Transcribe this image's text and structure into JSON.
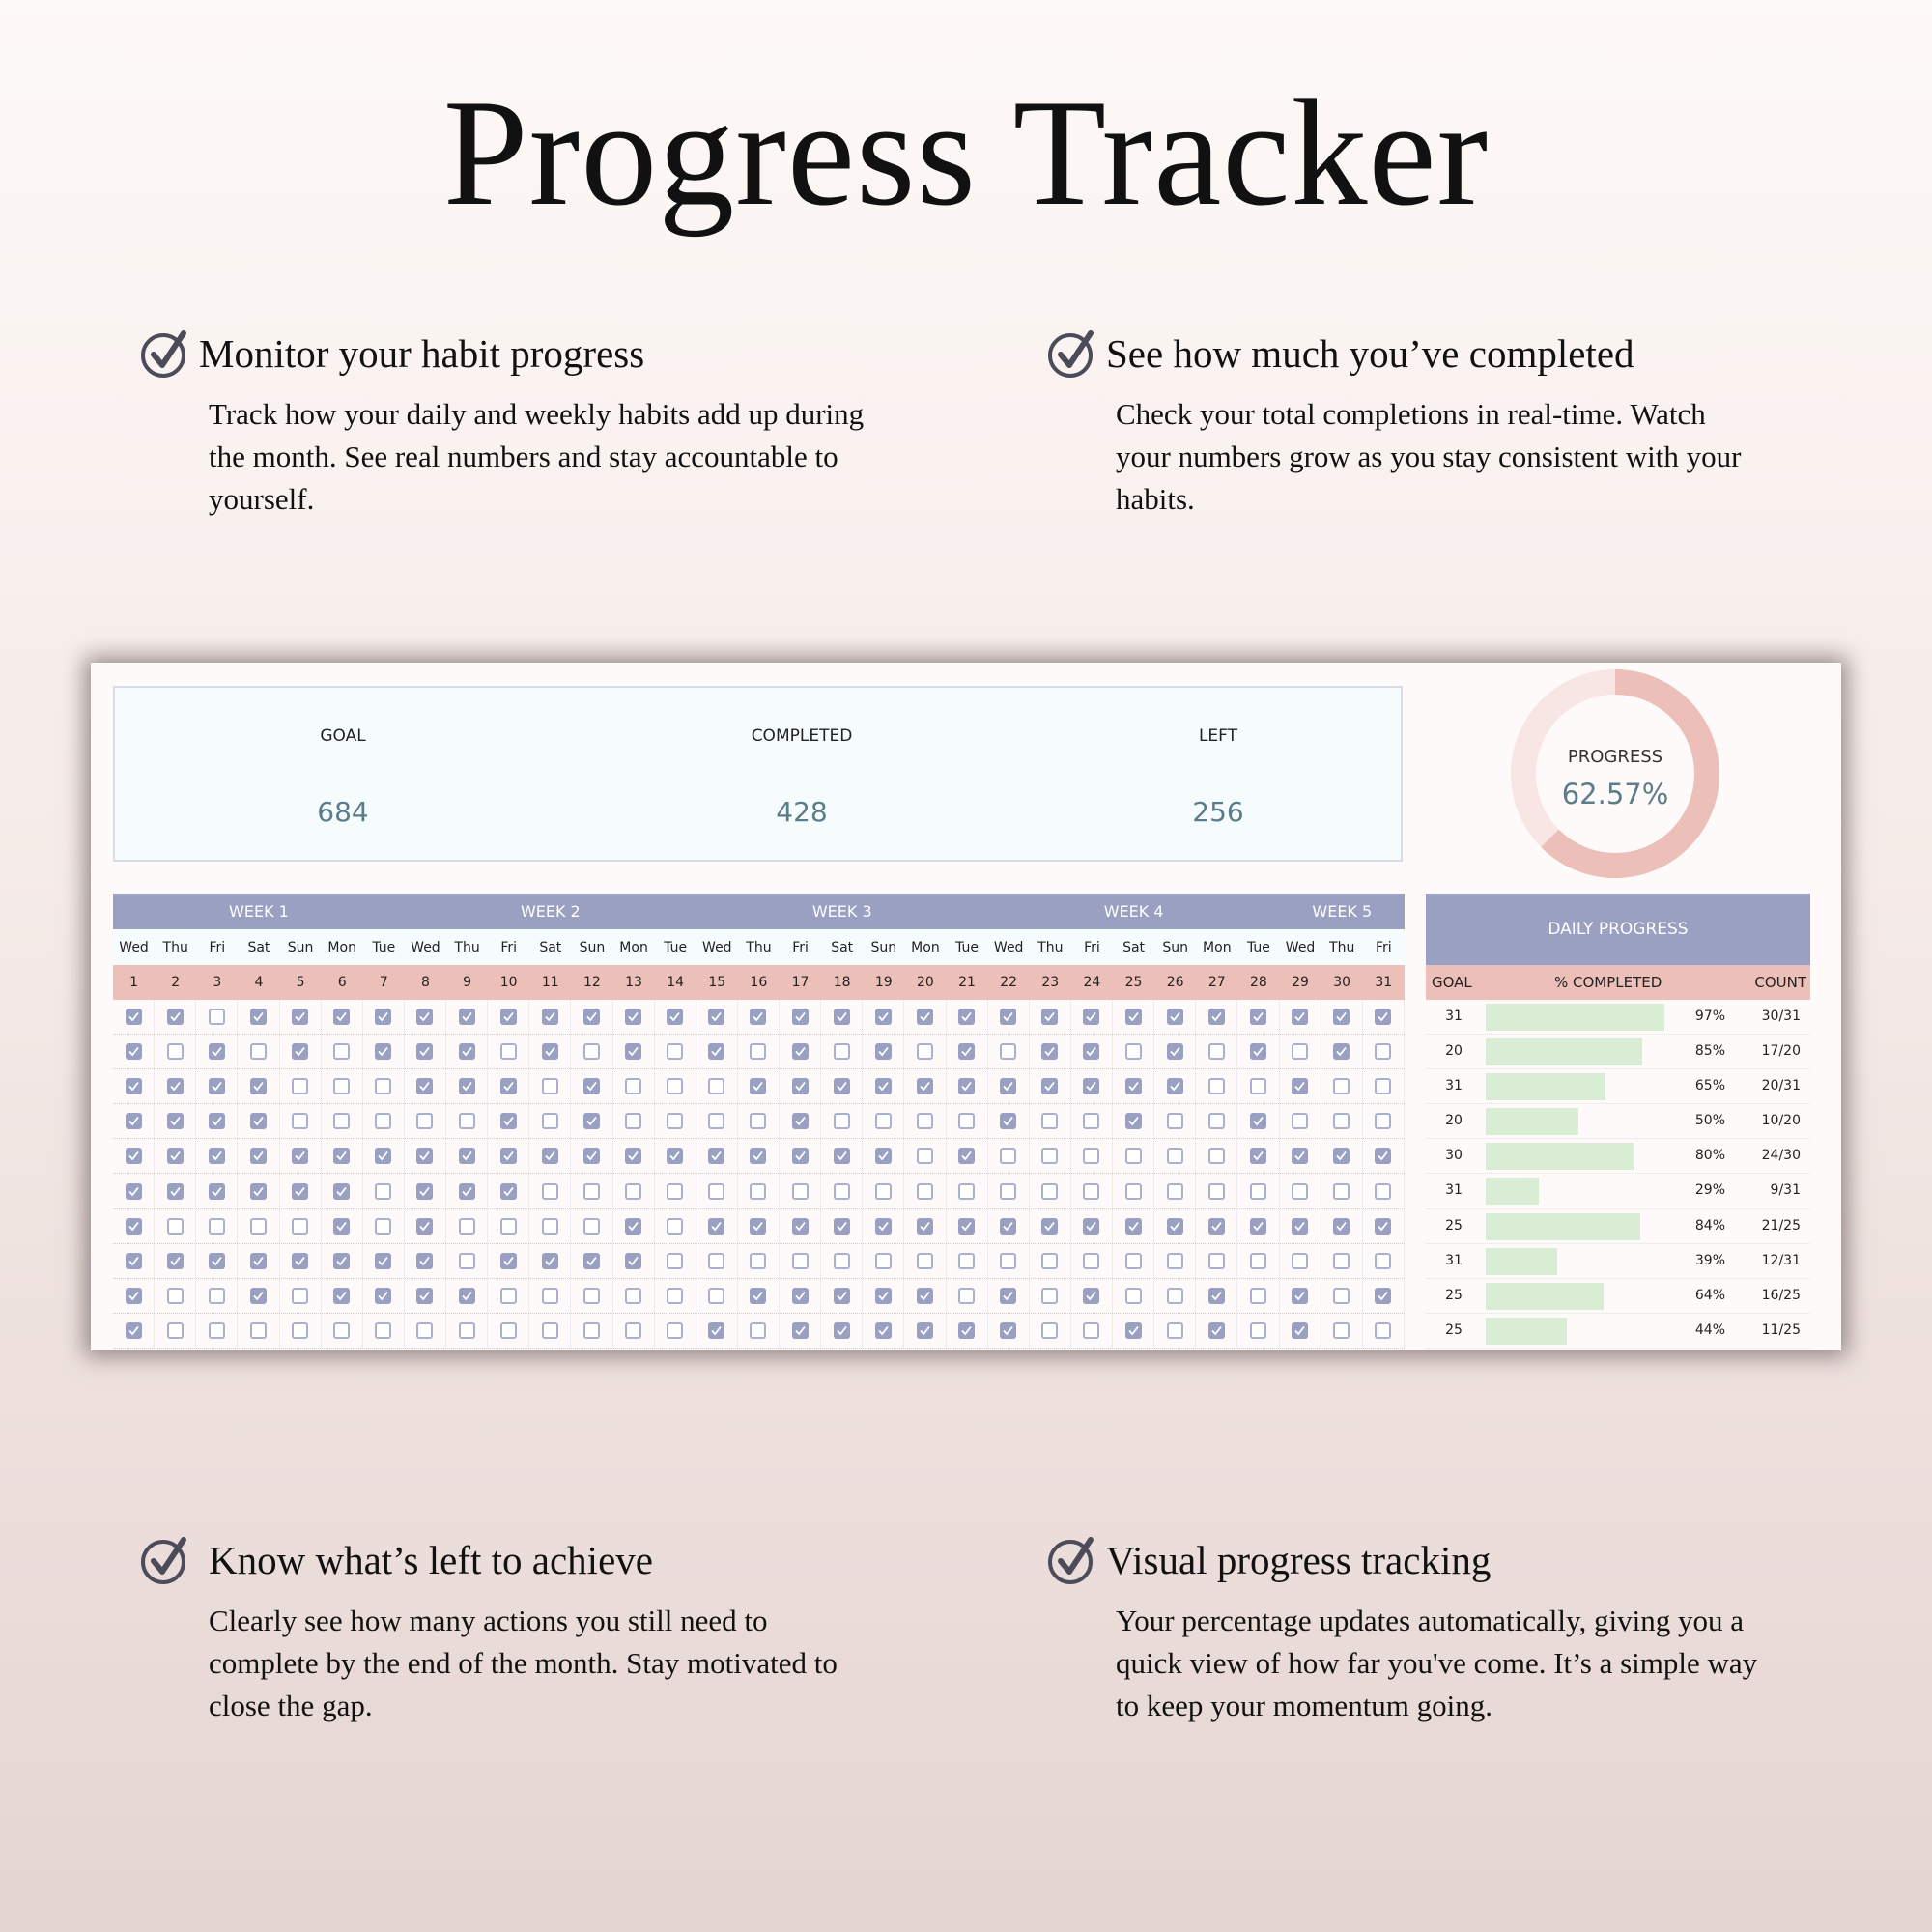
{
  "title": "Progress Tracker",
  "features": [
    {
      "heading": "Monitor your habit progress",
      "body": [
        "Track how your daily and weekly habits add up during",
        "the month. See real numbers and stay accountable to",
        "yourself."
      ]
    },
    {
      "heading": "See how much you’ve completed",
      "body": [
        "Check your total completions in real-time. Watch",
        "your numbers grow as you stay consistent with your",
        "habits."
      ]
    },
    {
      "heading": "Know what’s left to achieve",
      "body": [
        "Clearly see how many actions you still need to",
        "complete by the end of the month. Stay motivated to",
        "close the gap."
      ]
    },
    {
      "heading": "Visual progress tracking",
      "body": [
        "Your percentage updates automatically, giving you a",
        "quick view of how far you've come. It’s a simple way",
        "to keep your momentum going."
      ]
    }
  ],
  "feature_icon": "circle-check-icon",
  "stats": {
    "goal_label": "GOAL",
    "goal": "684",
    "completed_label": "COMPLETED",
    "completed": "428",
    "left_label": "LEFT",
    "left": "256"
  },
  "progress": {
    "label": "PROGRESS",
    "value": "62.57%",
    "fraction": 0.6257
  },
  "weeks": [
    {
      "label": "WEEK 1",
      "start": 1,
      "end": 7
    },
    {
      "label": "WEEK 2",
      "start": 8,
      "end": 14
    },
    {
      "label": "WEEK 3",
      "start": 15,
      "end": 21
    },
    {
      "label": "WEEK 4",
      "start": 22,
      "end": 28
    },
    {
      "label": "WEEK 5",
      "start": 29,
      "end": 31
    }
  ],
  "days": [
    "Wed",
    "Thu",
    "Fri",
    "Sat",
    "Sun",
    "Mon",
    "Tue",
    "Wed",
    "Thu",
    "Fri",
    "Sat",
    "Sun",
    "Mon",
    "Tue",
    "Wed",
    "Thu",
    "Fri",
    "Sat",
    "Sun",
    "Mon",
    "Tue",
    "Wed",
    "Thu",
    "Fri",
    "Sat",
    "Sun",
    "Mon",
    "Tue",
    "Wed",
    "Thu",
    "Fri"
  ],
  "dates": [
    "1",
    "2",
    "3",
    "4",
    "5",
    "6",
    "7",
    "8",
    "9",
    "10",
    "11",
    "12",
    "13",
    "14",
    "15",
    "16",
    "17",
    "18",
    "19",
    "20",
    "21",
    "22",
    "23",
    "24",
    "25",
    "26",
    "27",
    "28",
    "29",
    "30",
    "31"
  ],
  "habits": [
    {
      "checks": [
        1,
        1,
        0,
        1,
        1,
        1,
        1,
        1,
        1,
        1,
        1,
        1,
        1,
        1,
        1,
        1,
        1,
        1,
        1,
        1,
        1,
        1,
        1,
        1,
        1,
        1,
        1,
        1,
        1,
        1,
        1
      ],
      "goal": "31",
      "pct": "97%",
      "pct_value": 97,
      "count": "30/31"
    },
    {
      "checks": [
        1,
        0,
        1,
        0,
        1,
        0,
        1,
        1,
        1,
        0,
        1,
        0,
        1,
        0,
        1,
        0,
        1,
        0,
        1,
        0,
        1,
        0,
        1,
        1,
        0,
        1,
        0,
        1,
        0,
        1,
        0
      ],
      "goal": "20",
      "pct": "85%",
      "pct_value": 85,
      "count": "17/20"
    },
    {
      "checks": [
        1,
        1,
        1,
        1,
        0,
        0,
        0,
        1,
        1,
        1,
        0,
        1,
        0,
        0,
        0,
        1,
        1,
        1,
        1,
        1,
        1,
        1,
        1,
        1,
        1,
        1,
        0,
        0,
        1,
        0,
        0
      ],
      "goal": "31",
      "pct": "65%",
      "pct_value": 65,
      "count": "20/31"
    },
    {
      "checks": [
        1,
        1,
        1,
        1,
        0,
        0,
        0,
        0,
        0,
        1,
        0,
        1,
        0,
        0,
        0,
        0,
        1,
        0,
        0,
        0,
        0,
        1,
        0,
        0,
        1,
        0,
        0,
        1,
        0,
        0,
        0
      ],
      "goal": "20",
      "pct": "50%",
      "pct_value": 50,
      "count": "10/20"
    },
    {
      "checks": [
        1,
        1,
        1,
        1,
        1,
        1,
        1,
        1,
        1,
        1,
        1,
        1,
        1,
        1,
        1,
        1,
        1,
        1,
        1,
        0,
        1,
        0,
        0,
        0,
        0,
        0,
        0,
        1,
        1,
        1,
        1
      ],
      "goal": "30",
      "pct": "80%",
      "pct_value": 80,
      "count": "24/30"
    },
    {
      "checks": [
        1,
        1,
        1,
        1,
        1,
        1,
        0,
        1,
        1,
        1,
        0,
        0,
        0,
        0,
        0,
        0,
        0,
        0,
        0,
        0,
        0,
        0,
        0,
        0,
        0,
        0,
        0,
        0,
        0,
        0,
        0
      ],
      "goal": "31",
      "pct": "29%",
      "pct_value": 29,
      "count": "9/31"
    },
    {
      "checks": [
        1,
        0,
        0,
        0,
        0,
        1,
        0,
        1,
        0,
        0,
        0,
        0,
        1,
        0,
        1,
        1,
        1,
        1,
        1,
        1,
        1,
        1,
        1,
        1,
        1,
        1,
        1,
        1,
        1,
        1,
        1
      ],
      "goal": "25",
      "pct": "84%",
      "pct_value": 84,
      "count": "21/25"
    },
    {
      "checks": [
        1,
        1,
        1,
        1,
        1,
        1,
        1,
        1,
        0,
        1,
        1,
        1,
        1,
        0,
        0,
        0,
        0,
        0,
        0,
        0,
        0,
        0,
        0,
        0,
        0,
        0,
        0,
        0,
        0,
        0,
        0
      ],
      "goal": "31",
      "pct": "39%",
      "pct_value": 39,
      "count": "12/31"
    },
    {
      "checks": [
        1,
        0,
        0,
        1,
        0,
        1,
        1,
        1,
        1,
        0,
        0,
        0,
        0,
        0,
        0,
        1,
        1,
        1,
        1,
        1,
        0,
        1,
        0,
        1,
        0,
        0,
        1,
        0,
        1,
        0,
        1
      ],
      "goal": "25",
      "pct": "64%",
      "pct_value": 64,
      "count": "16/25"
    },
    {
      "checks": [
        1,
        0,
        0,
        0,
        0,
        0,
        0,
        0,
        0,
        0,
        0,
        0,
        0,
        0,
        1,
        0,
        1,
        1,
        1,
        1,
        1,
        1,
        0,
        0,
        1,
        0,
        1,
        0,
        1,
        0,
        0
      ],
      "goal": "25",
      "pct": "44%",
      "pct_value": 44,
      "count": "11/25"
    }
  ],
  "daily_progress": {
    "title": "DAILY PROGRESS",
    "goal_header": "GOAL",
    "pct_header": "% COMPLETED",
    "count_header": "COUNT"
  },
  "colors": {
    "header": "#9aa0c2",
    "accent_pink": "#ecc0b8",
    "donut_track": "#f7e6e3",
    "value_text": "#5b7d8a",
    "bar": "#d9ecd4"
  }
}
